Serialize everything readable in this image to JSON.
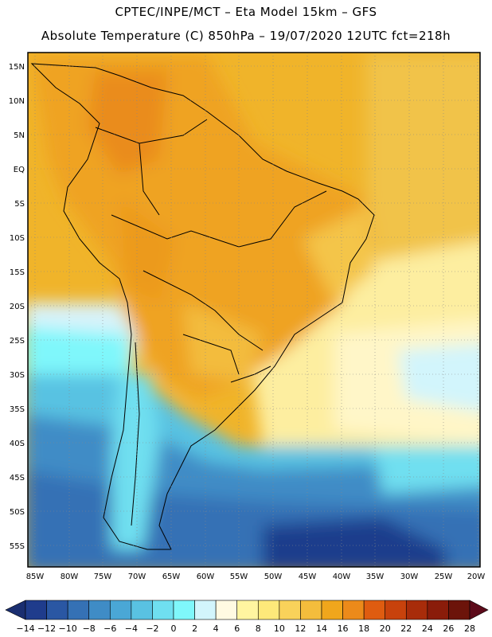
{
  "header": {
    "line1": "CPTEC/INPE/MCT –  Eta Model 15km – GFS",
    "line2": "Absolute Temperature (C) 850hPa – 19/07/2020 12UTC fct=218h"
  },
  "map": {
    "region": "South America",
    "lat_labels": [
      "15N",
      "10N",
      "5N",
      "EQ",
      "5S",
      "10S",
      "15S",
      "20S",
      "25S",
      "30S",
      "35S",
      "40S",
      "45S",
      "50S",
      "55S"
    ],
    "lon_labels": [
      "85W",
      "80W",
      "75W",
      "70W",
      "65W",
      "60W",
      "55W",
      "50W",
      "45W",
      "40W",
      "35W",
      "30W",
      "25W",
      "20W"
    ]
  },
  "colorbar": {
    "colors": [
      "#1f3c8c",
      "#2a57a3",
      "#3571b5",
      "#3f8cc6",
      "#4aa7d6",
      "#59c2e2",
      "#6fdff0",
      "#7ff7fb",
      "#d2f5fc",
      "#fffae2",
      "#fff5a0",
      "#fde97a",
      "#f9d25a",
      "#f4bd3c",
      "#f0a61c",
      "#ec8a1a",
      "#df5c10",
      "#c8420c",
      "#a82c0a",
      "#8a1c0a",
      "#6c140a"
    ],
    "low_arrow_color": "#1a2e70",
    "high_arrow_color": "#5c0a1a",
    "ticks": [
      "-14",
      "-12",
      "-10",
      "-8",
      "-6",
      "-4",
      "-2",
      "0",
      "2",
      "4",
      "6",
      "8",
      "10",
      "12",
      "14",
      "16",
      "18",
      "20",
      "22",
      "24",
      "26",
      "28"
    ]
  }
}
